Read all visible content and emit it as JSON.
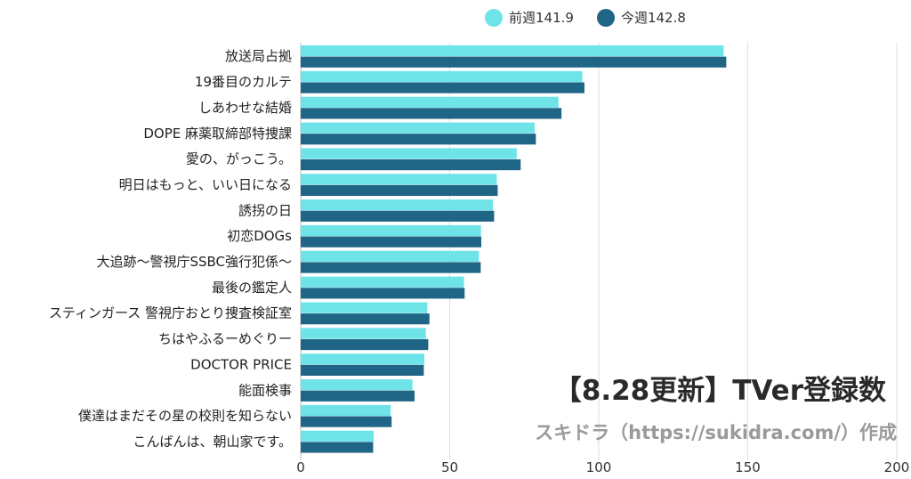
{
  "legend": [
    {
      "name": "前週141.9",
      "color": "#6ee4e8"
    },
    {
      "name": "今週142.8",
      "color": "#1f6585"
    }
  ],
  "headline": "【8.28更新】TVer登録数",
  "credit": "スキドラ（https://sukidra.com/）作成",
  "chart_data": {
    "type": "bar",
    "orientation": "horizontal",
    "categories": [
      "放送局占拠",
      "19番目のカルテ",
      "しあわせな結婚",
      "DOPE 麻薬取締部特捜課",
      "愛の、がっこう。",
      "明日はもっと、いい日になる",
      "誘拐の日",
      "初恋DOGs",
      "大追跡～警視庁SSBC強行犯係～",
      "最後の鑑定人",
      "スティンガース 警視庁おとり捜査検証室",
      "ちはやふるーめぐりー",
      "DOCTOR PRICE",
      "能面検事",
      "僕達はまだその星の校則を知らない",
      "こんばんは、朝山家です。"
    ],
    "series": [
      {
        "name": "前週141.9",
        "color": "#6ee4e8",
        "values": [
          141.9,
          94.5,
          86.5,
          78.5,
          72.5,
          65.8,
          64.5,
          60.5,
          59.8,
          54.8,
          42.5,
          42.0,
          41.5,
          37.5,
          30.2,
          24.5
        ]
      },
      {
        "name": "今週142.8",
        "color": "#1f6585",
        "values": [
          142.8,
          95.2,
          87.5,
          78.9,
          73.8,
          66.1,
          64.9,
          60.6,
          60.4,
          55.0,
          43.2,
          42.8,
          41.3,
          38.2,
          30.5,
          24.3
        ]
      }
    ],
    "xlim": [
      0,
      200
    ],
    "xticks": [
      "0",
      "50",
      "100",
      "150",
      "200"
    ],
    "grid": true,
    "legend_position": "top"
  }
}
